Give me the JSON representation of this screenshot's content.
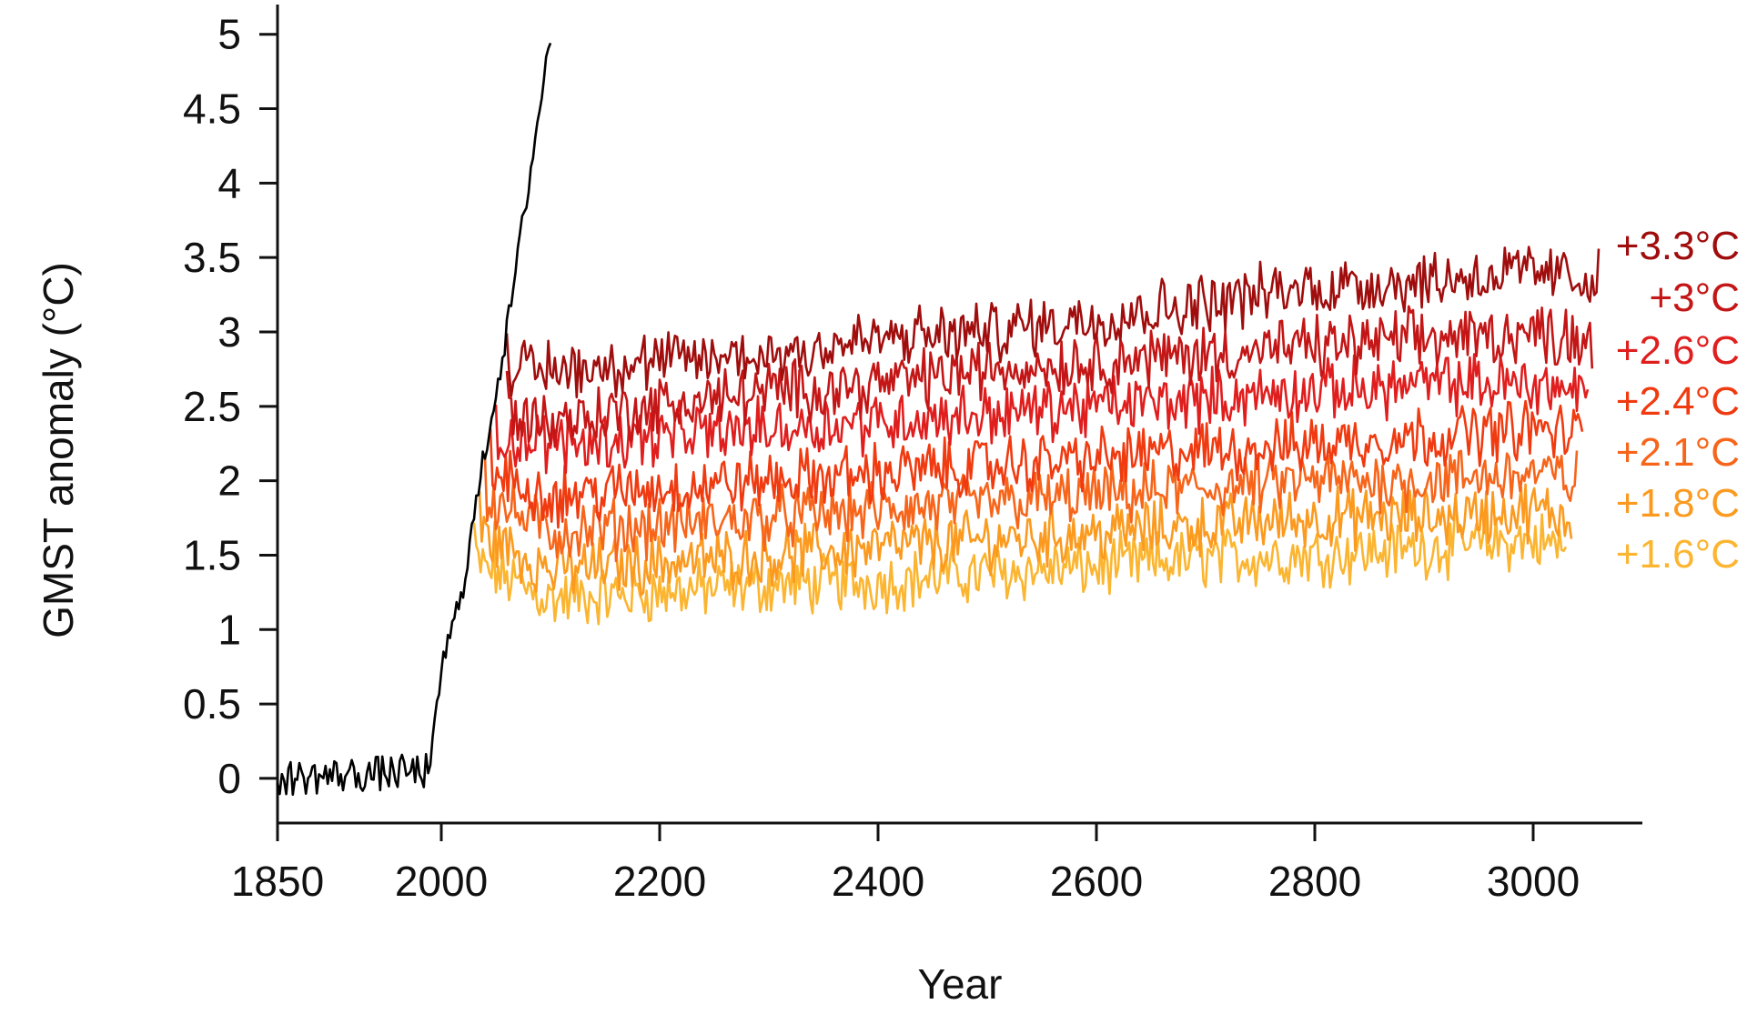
{
  "chart_data": {
    "type": "line",
    "title": "",
    "xlabel": "Year",
    "ylabel": "GMST anomaly (°C)",
    "xlim": [
      1850,
      3100
    ],
    "ylim": [
      -0.3,
      5.2
    ],
    "xticks": [
      1850,
      2000,
      2200,
      2400,
      2600,
      2800,
      3000
    ],
    "xtick_labels": [
      "1850",
      "2000",
      "2200",
      "2400",
      "2600",
      "2800",
      "3000"
    ],
    "yticks": [
      0,
      0.5,
      1,
      1.5,
      2,
      2.5,
      3,
      3.5,
      4,
      4.5,
      5
    ],
    "ytick_labels": [
      "0",
      "0.5",
      "1",
      "1.5",
      "2",
      "2.5",
      "3",
      "3.5",
      "4",
      "4.5",
      "5"
    ],
    "grid": false,
    "legend": "right-side inline labels",
    "historical": {
      "color": "#000000",
      "points": [
        [
          1850,
          0.0
        ],
        [
          1990,
          0.05
        ],
        [
          2000,
          0.75
        ],
        [
          2010,
          1.0
        ],
        [
          2020,
          1.3
        ],
        [
          2030,
          1.75
        ],
        [
          2040,
          2.2
        ],
        [
          2050,
          2.6
        ],
        [
          2060,
          3.0
        ],
        [
          2070,
          3.5
        ],
        [
          2080,
          4.0
        ],
        [
          2090,
          4.5
        ],
        [
          2100,
          5.0
        ]
      ]
    },
    "series": [
      {
        "label": "+3.3°C",
        "color": "#a00d0d",
        "start": [
          2060,
          3.0
        ],
        "points": [
          [
            2060,
            2.75
          ],
          [
            2100,
            2.75
          ],
          [
            2200,
            2.8
          ],
          [
            2300,
            2.85
          ],
          [
            2400,
            2.95
          ],
          [
            2500,
            3.0
          ],
          [
            2600,
            3.1
          ],
          [
            2700,
            3.2
          ],
          [
            2800,
            3.3
          ],
          [
            2900,
            3.35
          ],
          [
            3000,
            3.4
          ],
          [
            3060,
            3.35
          ]
        ]
      },
      {
        "label": "+3°C",
        "color": "#c41616",
        "start": [
          2060,
          2.7
        ],
        "points": [
          [
            2060,
            2.45
          ],
          [
            2100,
            2.4
          ],
          [
            2200,
            2.5
          ],
          [
            2300,
            2.6
          ],
          [
            2400,
            2.65
          ],
          [
            2500,
            2.75
          ],
          [
            2600,
            2.8
          ],
          [
            2700,
            2.85
          ],
          [
            2800,
            2.9
          ],
          [
            2900,
            2.95
          ],
          [
            3000,
            3.0
          ],
          [
            3055,
            2.95
          ]
        ]
      },
      {
        "label": "+2.6°C",
        "color": "#e01e1e",
        "start": [
          2050,
          2.5
        ],
        "points": [
          [
            2050,
            2.3
          ],
          [
            2100,
            2.25
          ],
          [
            2200,
            2.3
          ],
          [
            2300,
            2.35
          ],
          [
            2400,
            2.4
          ],
          [
            2500,
            2.45
          ],
          [
            2600,
            2.5
          ],
          [
            2700,
            2.55
          ],
          [
            2800,
            2.6
          ],
          [
            2900,
            2.65
          ],
          [
            3000,
            2.65
          ],
          [
            3050,
            2.6
          ]
        ]
      },
      {
        "label": "+2.4°C",
        "color": "#f03a10",
        "start": [
          2045,
          2.3
        ],
        "points": [
          [
            2045,
            2.05
          ],
          [
            2100,
            1.9
          ],
          [
            2200,
            1.95
          ],
          [
            2300,
            2.0
          ],
          [
            2400,
            2.05
          ],
          [
            2500,
            2.1
          ],
          [
            2600,
            2.15
          ],
          [
            2700,
            2.2
          ],
          [
            2800,
            2.25
          ],
          [
            2900,
            2.3
          ],
          [
            3000,
            2.35
          ],
          [
            3045,
            2.3
          ]
        ]
      },
      {
        "label": "+2.1°C",
        "color": "#f7651a",
        "start": [
          2040,
          2.1
        ],
        "points": [
          [
            2040,
            1.9
          ],
          [
            2100,
            1.65
          ],
          [
            2200,
            1.7
          ],
          [
            2300,
            1.75
          ],
          [
            2400,
            1.8
          ],
          [
            2500,
            1.85
          ],
          [
            2600,
            1.9
          ],
          [
            2700,
            1.95
          ],
          [
            2800,
            2.0
          ],
          [
            2900,
            2.0
          ],
          [
            3000,
            2.05
          ],
          [
            3040,
            2.0
          ]
        ]
      },
      {
        "label": "+1.8°C",
        "color": "#fb9a1e",
        "start": [
          2035,
          1.9
        ],
        "points": [
          [
            2035,
            1.65
          ],
          [
            2100,
            1.4
          ],
          [
            2200,
            1.45
          ],
          [
            2300,
            1.5
          ],
          [
            2400,
            1.55
          ],
          [
            2500,
            1.6
          ],
          [
            2600,
            1.65
          ],
          [
            2700,
            1.7
          ],
          [
            2800,
            1.75
          ],
          [
            2900,
            1.75
          ],
          [
            3000,
            1.8
          ],
          [
            3035,
            1.75
          ]
        ]
      },
      {
        "label": "+1.6°C",
        "color": "#fbb530",
        "start": [
          2030,
          1.7
        ],
        "points": [
          [
            2030,
            1.45
          ],
          [
            2100,
            1.2
          ],
          [
            2200,
            1.25
          ],
          [
            2300,
            1.3
          ],
          [
            2400,
            1.32
          ],
          [
            2500,
            1.38
          ],
          [
            2600,
            1.42
          ],
          [
            2700,
            1.48
          ],
          [
            2800,
            1.5
          ],
          [
            2900,
            1.55
          ],
          [
            3000,
            1.6
          ],
          [
            3030,
            1.55
          ]
        ]
      }
    ]
  }
}
